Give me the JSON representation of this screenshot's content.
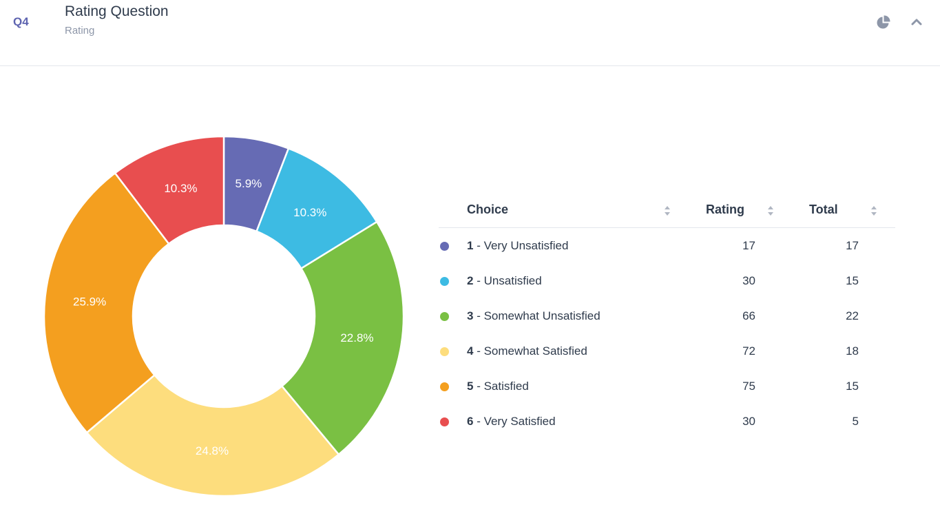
{
  "question": {
    "number": "Q4",
    "title": "Rating Question",
    "type": "Rating"
  },
  "icons": {
    "chart_type": "pie-chart-icon",
    "collapse": "chevron-up-icon"
  },
  "table": {
    "headers": {
      "choice": "Choice",
      "rating": "Rating",
      "total": "Total"
    },
    "rows": [
      {
        "num": "1",
        "label": " - Very Unsatisfied",
        "rating": "17",
        "total": "17",
        "color": "#666bb4"
      },
      {
        "num": "2",
        "label": " - Unsatisfied",
        "rating": "30",
        "total": "15",
        "color": "#3dbbe3"
      },
      {
        "num": "3",
        "label": " - Somewhat Unsatisfied",
        "rating": "66",
        "total": "22",
        "color": "#7ac043"
      },
      {
        "num": "4",
        "label": " - Somewhat Satisfied",
        "rating": "72",
        "total": "18",
        "color": "#fddd7d"
      },
      {
        "num": "5",
        "label": " - Satisfied",
        "rating": "75",
        "total": "15",
        "color": "#f49f1f"
      },
      {
        "num": "6",
        "label": " - Very Satisfied",
        "rating": "30",
        "total": "5",
        "color": "#e84e4f"
      }
    ]
  },
  "chart_data": {
    "type": "pie",
    "donut": true,
    "categories": [
      "1 - Very Unsatisfied",
      "2 - Unsatisfied",
      "3 - Somewhat Unsatisfied",
      "4 - Somewhat Satisfied",
      "5 - Satisfied",
      "6 - Very Satisfied"
    ],
    "values": [
      17,
      30,
      66,
      72,
      75,
      30
    ],
    "labels": [
      "5.9%",
      "10.3%",
      "22.8%",
      "24.8%",
      "25.9%",
      "10.3%"
    ],
    "colors": [
      "#666bb4",
      "#3dbbe3",
      "#7ac043",
      "#fddd7d",
      "#f49f1f",
      "#e84e4f"
    ]
  }
}
